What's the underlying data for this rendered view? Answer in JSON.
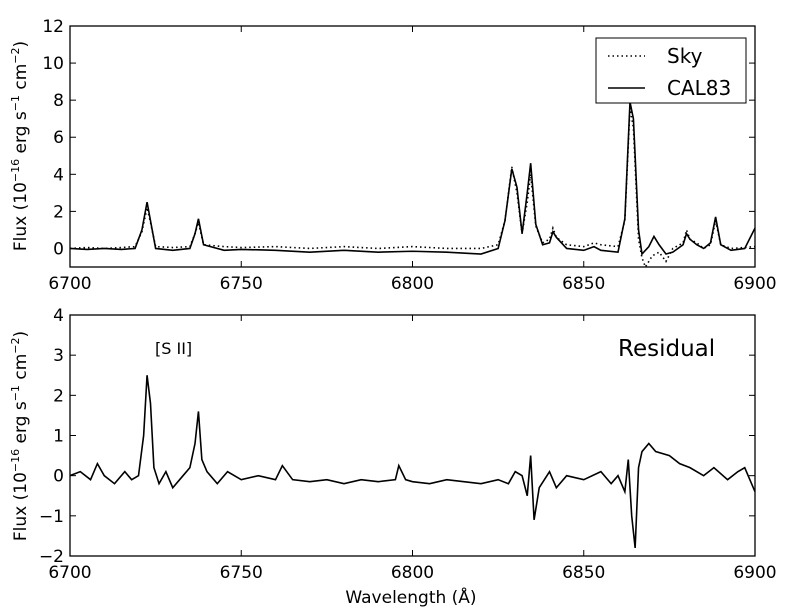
{
  "chart_data": [
    {
      "type": "line",
      "title": "",
      "xlabel": "",
      "ylabel": "Flux (10^-16 erg s^-1 cm^-2)",
      "ylabel_parts": {
        "prefix": "Flux (10",
        "exp1": "−16",
        "mid1": " erg s",
        "exp2": "−1",
        "mid2": " cm",
        "exp3": "−2",
        "suffix": ")"
      },
      "xlim": [
        6700,
        6900
      ],
      "ylim": [
        -1,
        12
      ],
      "xticks": [
        6700,
        6750,
        6800,
        6850,
        6900
      ],
      "yticks": [
        0,
        2,
        4,
        6,
        8,
        10,
        12
      ],
      "grid": false,
      "legend": "top-right",
      "series": [
        {
          "name": "Sky",
          "style": "dotted",
          "points": [
            [
              6700,
              0.0
            ],
            [
              6705,
              0.05
            ],
            [
              6710,
              0.0
            ],
            [
              6715,
              0.05
            ],
            [
              6719,
              0.1
            ],
            [
              6721,
              0.9
            ],
            [
              6722.5,
              2.2
            ],
            [
              6723.5,
              1.4
            ],
            [
              6725,
              0.1
            ],
            [
              6730,
              0.05
            ],
            [
              6735,
              0.1
            ],
            [
              6736.5,
              0.8
            ],
            [
              6737.5,
              1.4
            ],
            [
              6739,
              0.2
            ],
            [
              6745,
              0.1
            ],
            [
              6750,
              0.05
            ],
            [
              6760,
              0.1
            ],
            [
              6770,
              0.0
            ],
            [
              6780,
              0.1
            ],
            [
              6790,
              0.0
            ],
            [
              6800,
              0.1
            ],
            [
              6810,
              0.0
            ],
            [
              6820,
              0.0
            ],
            [
              6825,
              0.2
            ],
            [
              6827,
              1.5
            ],
            [
              6829,
              4.4
            ],
            [
              6830.5,
              3.0
            ],
            [
              6832,
              0.8
            ],
            [
              6833.5,
              2.5
            ],
            [
              6834.5,
              4.0
            ],
            [
              6836,
              1.2
            ],
            [
              6838,
              0.3
            ],
            [
              6840,
              0.5
            ],
            [
              6841,
              1.1
            ],
            [
              6842,
              0.6
            ],
            [
              6845,
              0.2
            ],
            [
              6850,
              0.1
            ],
            [
              6853,
              0.3
            ],
            [
              6855,
              0.2
            ],
            [
              6860,
              0.1
            ],
            [
              6862,
              1.5
            ],
            [
              6863.5,
              7.6
            ],
            [
              6864.5,
              6.5
            ],
            [
              6866,
              0.5
            ],
            [
              6867,
              -0.5
            ],
            [
              6868,
              -1.0
            ],
            [
              6870,
              -0.4
            ],
            [
              6872,
              -0.2
            ],
            [
              6874,
              -0.7
            ],
            [
              6876,
              0.0
            ],
            [
              6879,
              0.3
            ],
            [
              6880,
              1.0
            ],
            [
              6881,
              0.5
            ],
            [
              6883,
              0.3
            ],
            [
              6885,
              0.0
            ],
            [
              6887,
              0.2
            ],
            [
              6888.5,
              1.5
            ],
            [
              6890,
              0.2
            ],
            [
              6893,
              0.0
            ],
            [
              6897,
              0.05
            ],
            [
              6900,
              0.1
            ]
          ]
        },
        {
          "name": "CAL83",
          "style": "solid",
          "points": [
            [
              6700,
              0.0
            ],
            [
              6705,
              -0.05
            ],
            [
              6710,
              0.0
            ],
            [
              6715,
              -0.05
            ],
            [
              6719,
              0.0
            ],
            [
              6721,
              1.0
            ],
            [
              6722.5,
              2.5
            ],
            [
              6723.5,
              1.5
            ],
            [
              6725,
              0.0
            ],
            [
              6730,
              -0.1
            ],
            [
              6735,
              0.0
            ],
            [
              6736.5,
              0.8
            ],
            [
              6737.5,
              1.6
            ],
            [
              6739,
              0.2
            ],
            [
              6745,
              -0.1
            ],
            [
              6750,
              -0.05
            ],
            [
              6760,
              -0.1
            ],
            [
              6770,
              -0.2
            ],
            [
              6780,
              -0.1
            ],
            [
              6790,
              -0.2
            ],
            [
              6800,
              -0.15
            ],
            [
              6810,
              -0.2
            ],
            [
              6820,
              -0.3
            ],
            [
              6825,
              0.0
            ],
            [
              6827,
              1.5
            ],
            [
              6829,
              4.3
            ],
            [
              6830.5,
              3.3
            ],
            [
              6832,
              0.8
            ],
            [
              6833.5,
              3.0
            ],
            [
              6834.5,
              4.6
            ],
            [
              6836,
              1.3
            ],
            [
              6838,
              0.2
            ],
            [
              6840,
              0.3
            ],
            [
              6841,
              0.9
            ],
            [
              6842,
              0.6
            ],
            [
              6845,
              0.0
            ],
            [
              6850,
              -0.1
            ],
            [
              6853,
              0.1
            ],
            [
              6855,
              -0.1
            ],
            [
              6860,
              -0.2
            ],
            [
              6862,
              1.6
            ],
            [
              6863.5,
              7.9
            ],
            [
              6864.5,
              7.0
            ],
            [
              6866,
              1.0
            ],
            [
              6867,
              -0.3
            ],
            [
              6869,
              0.1
            ],
            [
              6870.5,
              0.65
            ],
            [
              6872,
              0.2
            ],
            [
              6874,
              -0.3
            ],
            [
              6876,
              -0.2
            ],
            [
              6879,
              0.2
            ],
            [
              6880,
              0.8
            ],
            [
              6881,
              0.5
            ],
            [
              6883,
              0.2
            ],
            [
              6885,
              0.0
            ],
            [
              6887,
              0.3
            ],
            [
              6888.5,
              1.7
            ],
            [
              6890,
              0.2
            ],
            [
              6893,
              -0.1
            ],
            [
              6897,
              0.0
            ],
            [
              6900,
              1.1
            ]
          ]
        }
      ]
    },
    {
      "type": "line",
      "title": "",
      "xlabel": "Wavelength (Å)",
      "ylabel": "Flux (10^-16 erg s^-1 cm^-2)",
      "ylabel_parts": {
        "prefix": "Flux (10",
        "exp1": "−16",
        "mid1": " erg s",
        "exp2": "−1",
        "mid2": " cm",
        "exp3": "−2",
        "suffix": ")"
      },
      "xlim": [
        6700,
        6900
      ],
      "ylim": [
        -2,
        4
      ],
      "xticks": [
        6700,
        6750,
        6800,
        6850,
        6900
      ],
      "yticks": [
        -2,
        -1,
        0,
        1,
        2,
        3,
        4
      ],
      "grid": false,
      "legend": "none",
      "annotations": [
        "[S II]",
        "Residual"
      ],
      "series": [
        {
          "name": "Residual",
          "style": "solid",
          "points": [
            [
              6700,
              0.0
            ],
            [
              6703,
              0.1
            ],
            [
              6706,
              -0.1
            ],
            [
              6708,
              0.3
            ],
            [
              6710,
              0.0
            ],
            [
              6713,
              -0.2
            ],
            [
              6716,
              0.1
            ],
            [
              6718,
              -0.1
            ],
            [
              6720,
              0.0
            ],
            [
              6721.5,
              1.0
            ],
            [
              6722.5,
              2.5
            ],
            [
              6723.5,
              1.8
            ],
            [
              6724.5,
              0.2
            ],
            [
              6726,
              -0.2
            ],
            [
              6728,
              0.1
            ],
            [
              6730,
              -0.3
            ],
            [
              6733,
              0.0
            ],
            [
              6735,
              0.2
            ],
            [
              6736.5,
              0.8
            ],
            [
              6737.5,
              1.6
            ],
            [
              6738.5,
              0.4
            ],
            [
              6740,
              0.1
            ],
            [
              6743,
              -0.2
            ],
            [
              6746,
              0.1
            ],
            [
              6750,
              -0.1
            ],
            [
              6755,
              0.0
            ],
            [
              6760,
              -0.1
            ],
            [
              6762,
              0.25
            ],
            [
              6765,
              -0.1
            ],
            [
              6770,
              -0.15
            ],
            [
              6775,
              -0.1
            ],
            [
              6780,
              -0.2
            ],
            [
              6785,
              -0.1
            ],
            [
              6790,
              -0.15
            ],
            [
              6795,
              -0.1
            ],
            [
              6796,
              0.25
            ],
            [
              6798,
              -0.1
            ],
            [
              6800,
              -0.15
            ],
            [
              6805,
              -0.2
            ],
            [
              6810,
              -0.1
            ],
            [
              6815,
              -0.15
            ],
            [
              6820,
              -0.2
            ],
            [
              6825,
              -0.1
            ],
            [
              6828,
              -0.2
            ],
            [
              6830,
              0.1
            ],
            [
              6832,
              0.0
            ],
            [
              6833.5,
              -0.5
            ],
            [
              6834.5,
              0.5
            ],
            [
              6835.5,
              -1.1
            ],
            [
              6837,
              -0.3
            ],
            [
              6840,
              0.1
            ],
            [
              6842,
              -0.3
            ],
            [
              6845,
              0.0
            ],
            [
              6850,
              -0.1
            ],
            [
              6855,
              0.1
            ],
            [
              6858,
              -0.2
            ],
            [
              6860,
              0.0
            ],
            [
              6862,
              -0.4
            ],
            [
              6863,
              0.4
            ],
            [
              6864,
              -1.0
            ],
            [
              6865,
              -1.8
            ],
            [
              6866,
              0.2
            ],
            [
              6867,
              0.6
            ],
            [
              6868,
              0.7
            ],
            [
              6869,
              0.8
            ],
            [
              6871,
              0.6
            ],
            [
              6875,
              0.5
            ],
            [
              6878,
              0.3
            ],
            [
              6881,
              0.2
            ],
            [
              6885,
              0.0
            ],
            [
              6888,
              0.2
            ],
            [
              6892,
              -0.1
            ],
            [
              6895,
              0.1
            ],
            [
              6897,
              0.2
            ],
            [
              6900,
              -0.4
            ]
          ]
        }
      ]
    }
  ]
}
